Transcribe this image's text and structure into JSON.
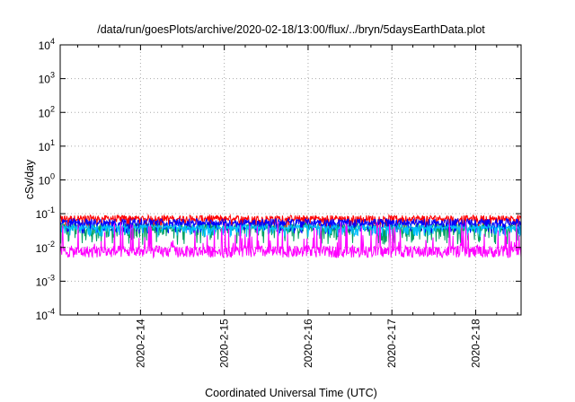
{
  "chart_data": {
    "type": "line",
    "title": "/data/run/goesPlots/archive/2020-02-18/13:00/flux/../bryn/5daysEarthData.plot",
    "xlabel": "Coordinated Universal Time (UTC)",
    "ylabel": "cSv/day",
    "x_tick_labels": [
      "2020-2-14",
      "2020-2-15",
      "2020-2-16",
      "2020-2-17",
      "2020-2-18"
    ],
    "xlim": [
      "2020-02-13T01:00",
      "2020-02-18T13:00"
    ],
    "y_scale": "log",
    "ylim": [
      0.0001,
      10000
    ],
    "y_ticks": [
      {
        "base": "10",
        "exp": "-4"
      },
      {
        "base": "10",
        "exp": "-3"
      },
      {
        "base": "10",
        "exp": "-2"
      },
      {
        "base": "10",
        "exp": "-1"
      },
      {
        "base": "10",
        "exp": "0"
      },
      {
        "base": "10",
        "exp": "1"
      },
      {
        "base": "10",
        "exp": "2"
      },
      {
        "base": "10",
        "exp": "3"
      },
      {
        "base": "10",
        "exp": "4"
      }
    ],
    "grid": true,
    "series": [
      {
        "color": "#ff0000",
        "typical": 0.06,
        "low": 0.035,
        "high": 0.1
      },
      {
        "color": "#00a060",
        "typical": 0.03,
        "low": 0.012,
        "high": 0.06
      },
      {
        "color": "#0000ff",
        "typical": 0.045,
        "low": 0.025,
        "high": 0.08
      },
      {
        "color": "#00c0ff",
        "typical": 0.035,
        "low": 0.02,
        "high": 0.05
      },
      {
        "color": "#ff00ff",
        "typical": 0.008,
        "low": 0.005,
        "high": 0.06
      }
    ]
  }
}
